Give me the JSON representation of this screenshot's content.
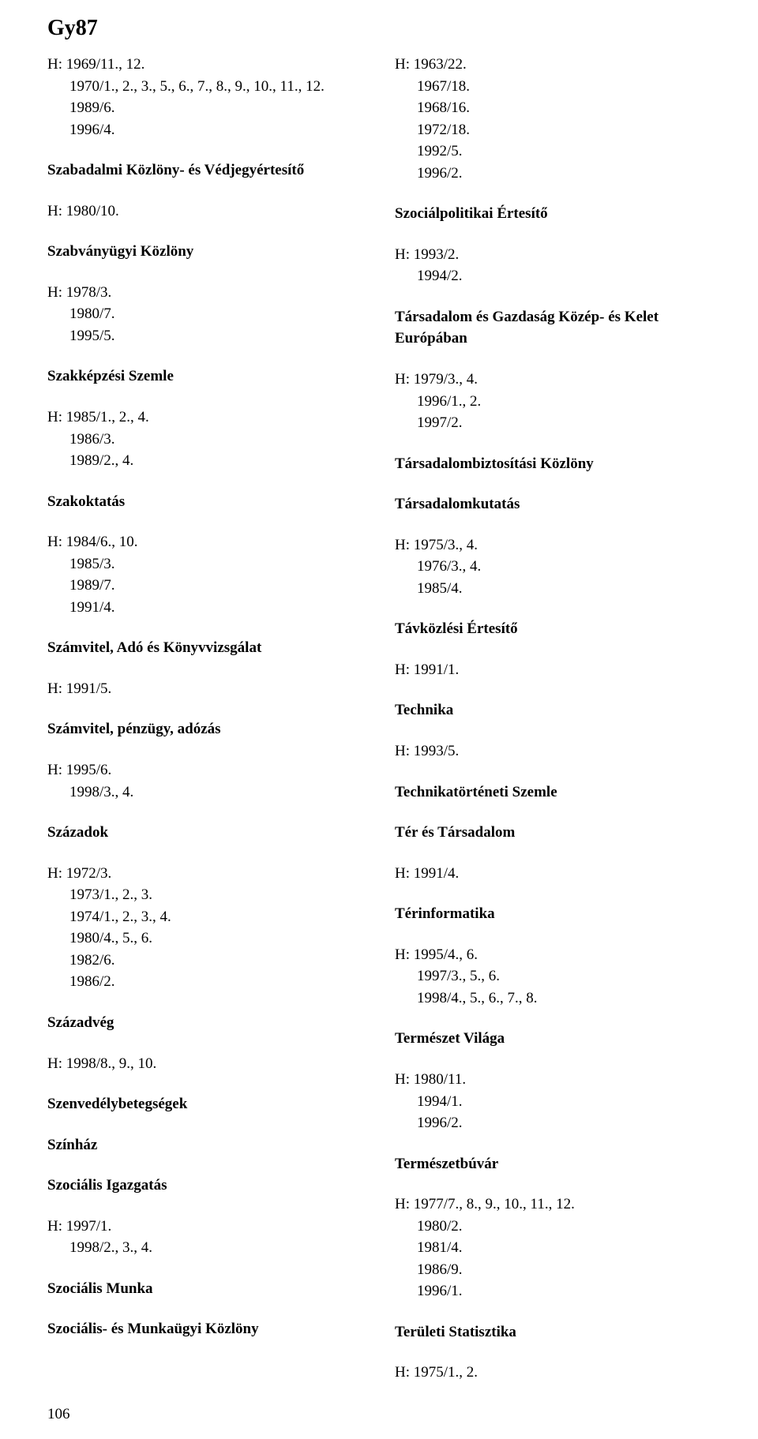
{
  "header": "Gy87",
  "page_number": "106",
  "left_column": [
    {
      "type": "lines",
      "values": [
        "H: 1969/11., 12.",
        "1970/1., 2., 3., 5., 6., 7., 8., 9., 10., 11., 12.",
        "1989/6.",
        "1996/4."
      ]
    },
    {
      "type": "title",
      "value": "Szabadalmi Közlöny- és Védjegyértesítő"
    },
    {
      "type": "lines",
      "values": [
        "H: 1980/10."
      ]
    },
    {
      "type": "title",
      "value": "Szabványügyi Közlöny"
    },
    {
      "type": "lines",
      "values": [
        "H: 1978/3.",
        "1980/7.",
        "1995/5."
      ]
    },
    {
      "type": "title",
      "value": "Szakképzési Szemle"
    },
    {
      "type": "lines",
      "values": [
        "H: 1985/1., 2., 4.",
        "1986/3.",
        "1989/2., 4."
      ]
    },
    {
      "type": "title",
      "value": "Szakoktatás"
    },
    {
      "type": "lines",
      "values": [
        "H: 1984/6., 10.",
        "1985/3.",
        "1989/7.",
        "1991/4."
      ]
    },
    {
      "type": "title",
      "value": "Számvitel, Adó és Könyvvizsgálat"
    },
    {
      "type": "lines",
      "values": [
        "H: 1991/5."
      ]
    },
    {
      "type": "title",
      "value": "Számvitel, pénzügy, adózás"
    },
    {
      "type": "lines",
      "values": [
        "H: 1995/6.",
        "1998/3., 4."
      ]
    },
    {
      "type": "title",
      "value": "Századok"
    },
    {
      "type": "lines",
      "values": [
        "H: 1972/3.",
        "1973/1., 2., 3.",
        "1974/1., 2., 3., 4.",
        "1980/4., 5., 6.",
        "1982/6.",
        "1986/2."
      ]
    },
    {
      "type": "title",
      "value": "Századvég"
    },
    {
      "type": "lines",
      "values": [
        "H: 1998/8., 9., 10."
      ]
    },
    {
      "type": "title",
      "value": "Szenvedélybetegségek"
    },
    {
      "type": "title",
      "value": "Színház"
    },
    {
      "type": "title",
      "value": "Szociális Igazgatás"
    },
    {
      "type": "lines",
      "values": [
        "H: 1997/1.",
        "1998/2., 3., 4."
      ]
    },
    {
      "type": "title",
      "value": "Szociális Munka"
    },
    {
      "type": "title",
      "value": "Szociális- és Munkaügyi Közlöny"
    }
  ],
  "right_column": [
    {
      "type": "lines",
      "values": [
        "H: 1963/22.",
        "1967/18.",
        "1968/16.",
        "1972/18.",
        "1992/5.",
        "1996/2."
      ]
    },
    {
      "type": "title",
      "value": "Szociálpolitikai Értesítő"
    },
    {
      "type": "lines",
      "values": [
        "H: 1993/2.",
        "1994/2."
      ]
    },
    {
      "type": "title",
      "value": "Társadalom és Gazdaság Közép- és Kelet Európában"
    },
    {
      "type": "lines",
      "values": [
        "H: 1979/3., 4.",
        "1996/1., 2.",
        "1997/2."
      ]
    },
    {
      "type": "title",
      "value": "Társadalombiztosítási Közlöny"
    },
    {
      "type": "title",
      "value": "Társadalomkutatás"
    },
    {
      "type": "lines",
      "values": [
        "H: 1975/3., 4.",
        "1976/3., 4.",
        "1985/4."
      ]
    },
    {
      "type": "title",
      "value": "Távközlési Értesítő"
    },
    {
      "type": "lines",
      "values": [
        "H: 1991/1."
      ]
    },
    {
      "type": "title",
      "value": "Technika"
    },
    {
      "type": "lines",
      "values": [
        "H: 1993/5."
      ]
    },
    {
      "type": "title",
      "value": "Technikatörténeti Szemle"
    },
    {
      "type": "title",
      "value": "Tér és Társadalom"
    },
    {
      "type": "lines",
      "values": [
        "H: 1991/4."
      ]
    },
    {
      "type": "title",
      "value": "Térinformatika"
    },
    {
      "type": "lines",
      "values": [
        "H: 1995/4., 6.",
        "1997/3., 5., 6.",
        "1998/4., 5., 6., 7., 8."
      ]
    },
    {
      "type": "title",
      "value": "Természet Világa"
    },
    {
      "type": "lines",
      "values": [
        "H: 1980/11.",
        "1994/1.",
        "1996/2."
      ]
    },
    {
      "type": "title",
      "value": "Természetbúvár"
    },
    {
      "type": "lines",
      "values": [
        "H: 1977/7., 8., 9., 10., 11., 12.",
        "1980/2.",
        "1981/4.",
        "1986/9.",
        "1996/1."
      ]
    },
    {
      "type": "title",
      "value": "Területi Statisztika"
    },
    {
      "type": "lines",
      "values": [
        "H: 1975/1., 2."
      ]
    }
  ]
}
